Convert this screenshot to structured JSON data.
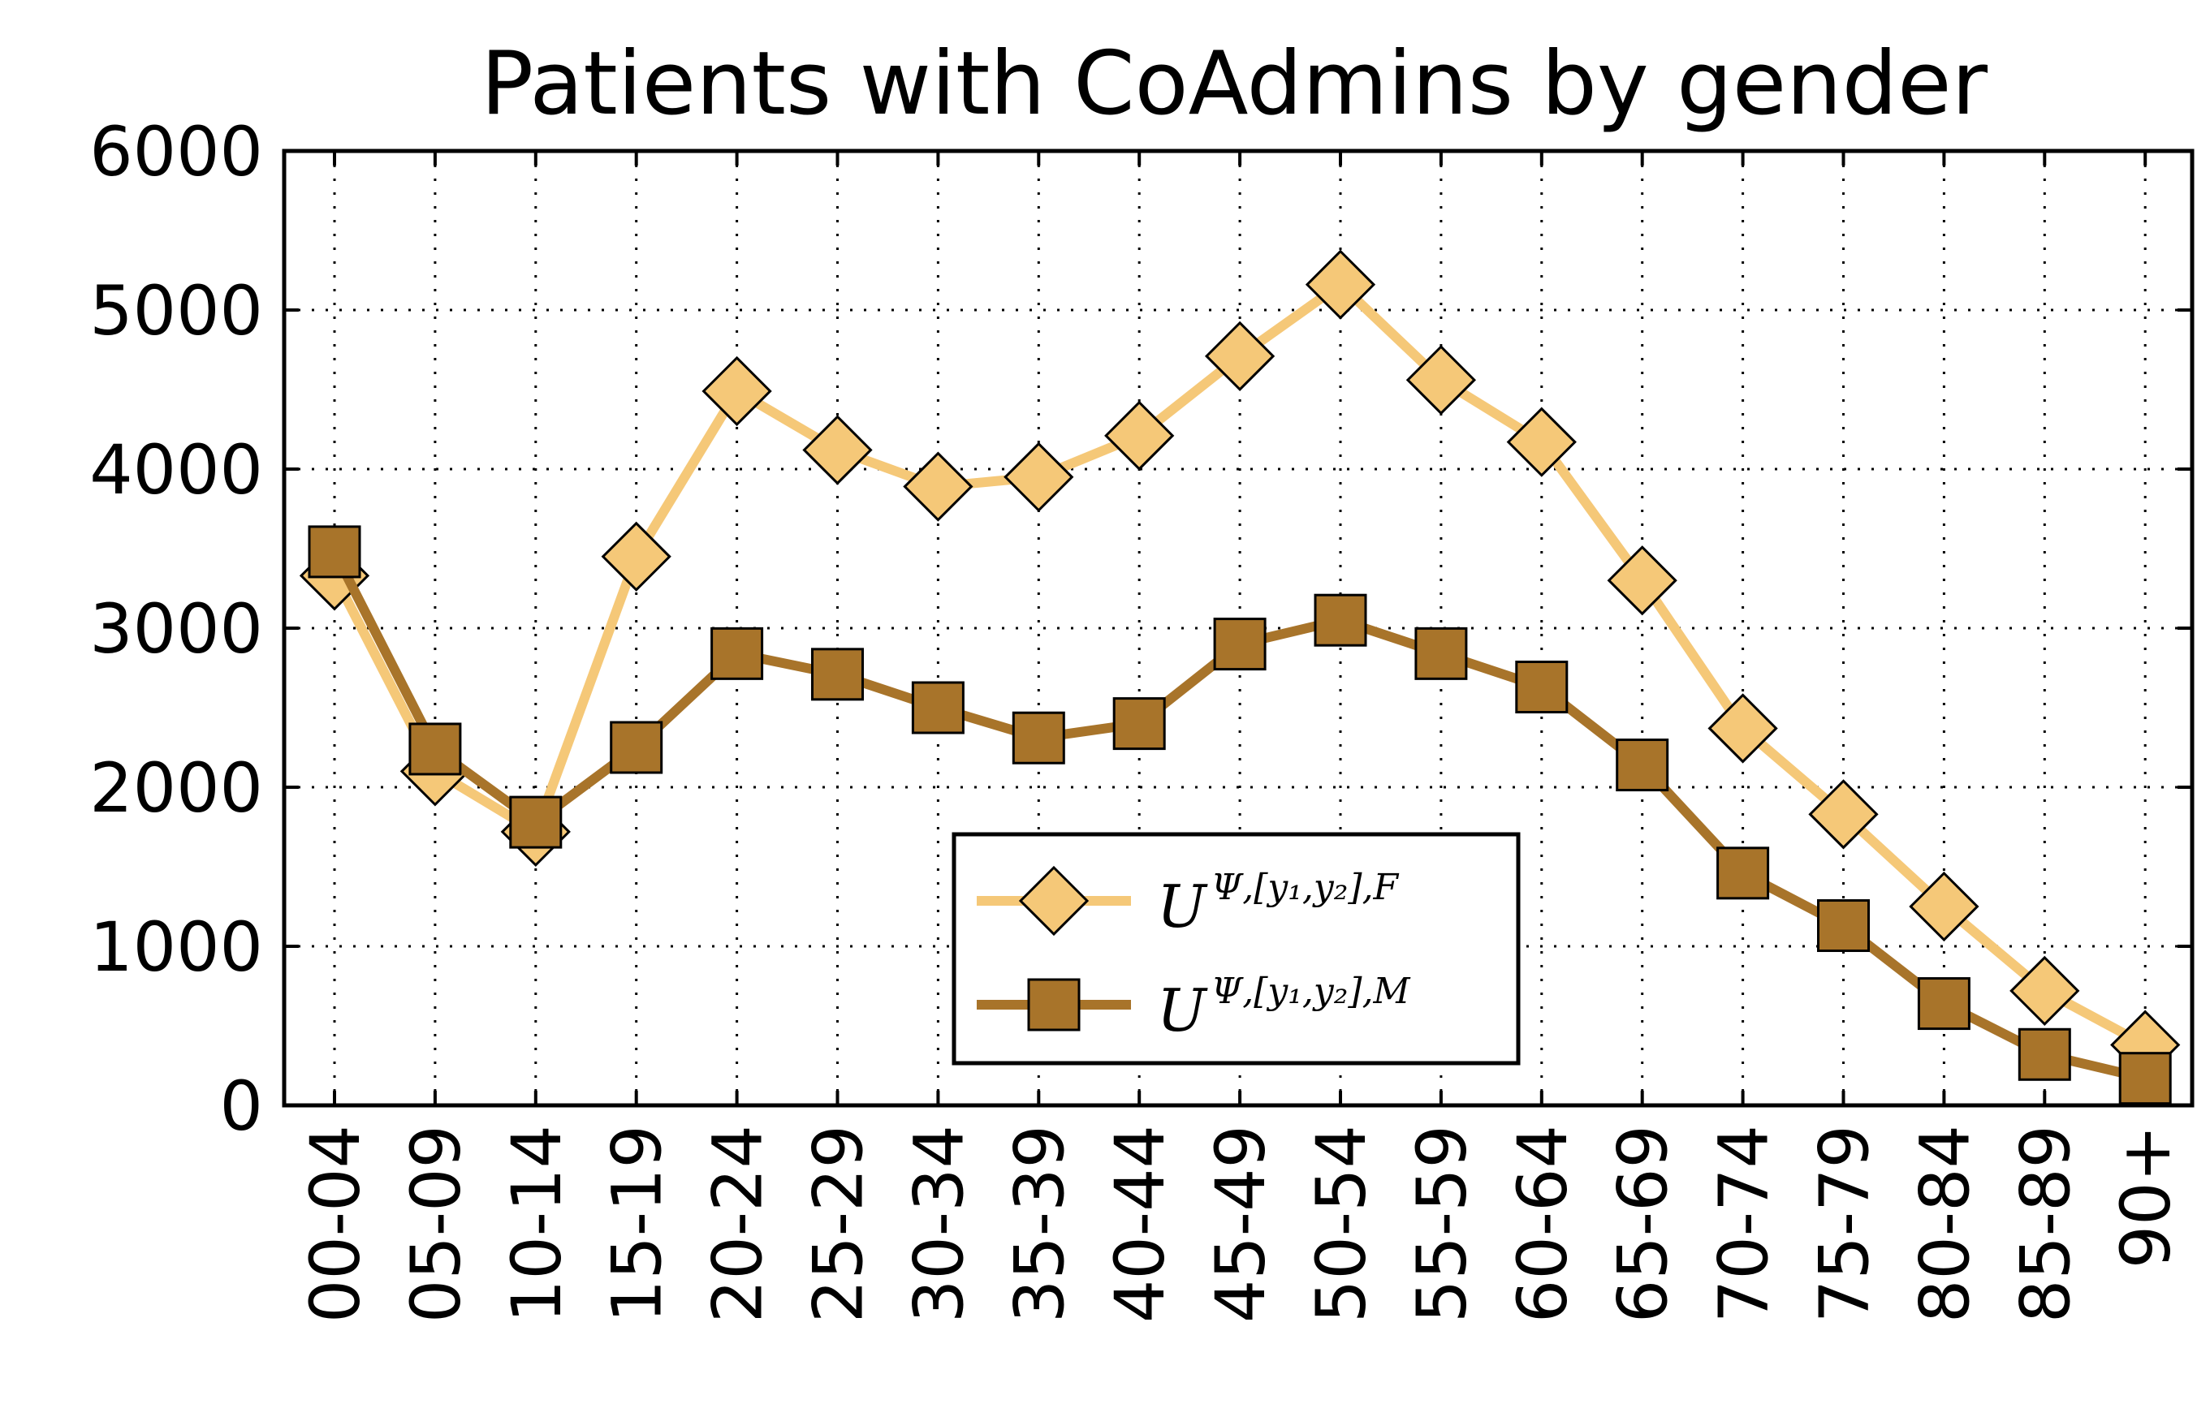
{
  "chart_data": {
    "type": "line",
    "title": "Patients with CoAdmins by gender",
    "xlabel": "",
    "ylabel": "",
    "categories": [
      "00-04",
      "05-09",
      "10-14",
      "15-19",
      "20-24",
      "25-29",
      "30-34",
      "35-39",
      "40-44",
      "45-49",
      "50-54",
      "55-59",
      "60-64",
      "65-69",
      "70-74",
      "75-79",
      "80-84",
      "85-89",
      "90+"
    ],
    "ylim": [
      0,
      6000
    ],
    "yticks": [
      "0",
      "1000",
      "2000",
      "3000",
      "4000",
      "5000",
      "6000"
    ],
    "grid": true,
    "legend_position": "lower-center",
    "series": [
      {
        "name": "U^{Ψ,[y1,y2],F}",
        "legend_base": "U",
        "legend_sup": "Ψ,[y₁,y₂],F",
        "marker": "diamond",
        "color": "#F5C878",
        "values": [
          3330,
          2100,
          1720,
          3450,
          4490,
          4120,
          3890,
          3950,
          4210,
          4710,
          5160,
          4560,
          4170,
          3300,
          2370,
          1830,
          1250,
          720,
          380
        ]
      },
      {
        "name": "U^{Ψ,[y1,y2],M}",
        "legend_base": "U",
        "legend_sup": "Ψ,[y₁,y₂],M",
        "marker": "square",
        "color": "#A8742A",
        "values": [
          3480,
          2240,
          1780,
          2250,
          2840,
          2710,
          2500,
          2310,
          2400,
          2900,
          3050,
          2840,
          2630,
          2140,
          1460,
          1130,
          640,
          320,
          170
        ]
      }
    ]
  }
}
